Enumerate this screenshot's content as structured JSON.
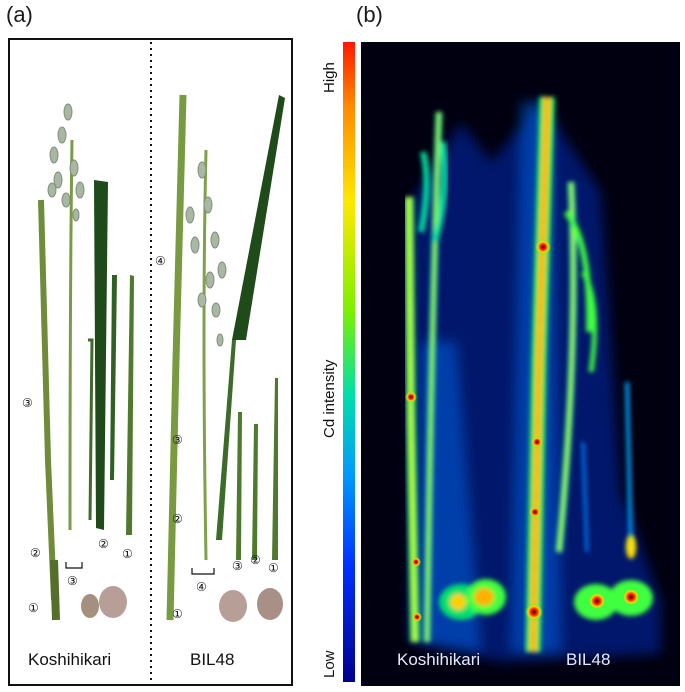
{
  "panel_a": {
    "label": "(a)",
    "left_caption": "Koshihikari",
    "right_caption": "BIL48",
    "part_markers": {
      "k_node3": "③",
      "k_node2": "②",
      "k_node1": "①",
      "k_bracket3": "③",
      "k_leaf2": "②",
      "k_leaf1": "①",
      "b_node4": "④",
      "b_node3": "③",
      "b_node2": "②",
      "b_node1": "①",
      "b_bracket4": "④",
      "b_leaf3": "③",
      "b_leaf2": "②",
      "b_leaf1": "①"
    }
  },
  "panel_b": {
    "label": "(b)",
    "colorbar": {
      "high": "High",
      "low": "Low",
      "title": "Cd intensity"
    },
    "left_caption": "Koshihikari",
    "right_caption": "BIL48"
  },
  "colors": {
    "stem_green": "#6e8c3a",
    "leaf_dark": "#1f4a1a",
    "panicle": "#a8b4a0",
    "background_dark": "#000010"
  }
}
